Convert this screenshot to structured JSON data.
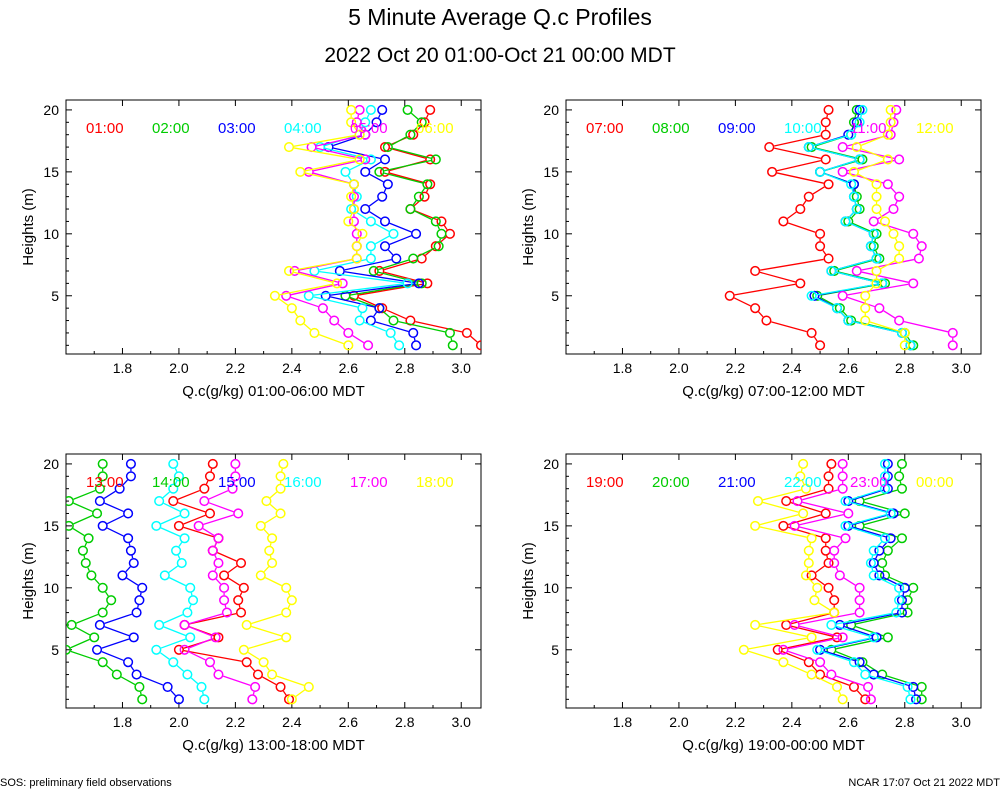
{
  "title": "5 Minute Average Q.c Profiles",
  "subtitle": "2022 Oct 20 01:00-Oct 21 00:00 MDT",
  "footer_left": "SOS: preliminary field observations",
  "footer_right": "NCAR 17:07 Oct 21 2022 MDT",
  "colors": [
    "#ff0000",
    "#00cc00",
    "#0000ff",
    "#00ffff",
    "#ff00ff",
    "#ffff00"
  ],
  "chart_data": [
    {
      "type": "line",
      "xlabel": "Q.c(g/kg) 01:00-06:00 MDT",
      "ylabel": "Heights (m)",
      "xlim": [
        1.6,
        3.07
      ],
      "ylim": [
        0.3,
        20.8
      ],
      "xticks": [
        "1.8",
        "2.0",
        "2.2",
        "2.4",
        "2.6",
        "2.8",
        "3.0"
      ],
      "yticks": [
        "5",
        "10",
        "15",
        "20"
      ],
      "heights": [
        1,
        2,
        3,
        4,
        5,
        6,
        7,
        8,
        9,
        10,
        11,
        12,
        13,
        14,
        15,
        16,
        17,
        18,
        19,
        20
      ],
      "series": [
        {
          "name": "01:00",
          "values": [
            3.07,
            3.02,
            2.82,
            2.72,
            2.62,
            2.88,
            2.71,
            2.86,
            2.91,
            2.96,
            2.93,
            2.82,
            2.87,
            2.89,
            2.73,
            2.89,
            2.73,
            2.83,
            2.87,
            2.89
          ]
        },
        {
          "name": "02:00",
          "values": [
            2.97,
            2.96,
            2.76,
            2.71,
            2.59,
            2.86,
            2.69,
            2.83,
            2.92,
            2.93,
            2.91,
            2.82,
            2.85,
            2.88,
            2.71,
            2.91,
            2.74,
            2.82,
            2.86,
            2.81
          ]
        },
        {
          "name": "03:00",
          "values": [
            2.84,
            2.83,
            2.68,
            2.71,
            2.52,
            2.85,
            2.57,
            2.77,
            2.73,
            2.84,
            2.73,
            2.66,
            2.72,
            2.74,
            2.66,
            2.73,
            2.53,
            2.66,
            2.7,
            2.72
          ]
        },
        {
          "name": "04:00",
          "values": [
            2.78,
            2.75,
            2.64,
            2.65,
            2.46,
            2.81,
            2.48,
            2.68,
            2.68,
            2.76,
            2.68,
            2.61,
            2.63,
            2.62,
            2.59,
            2.68,
            2.5,
            2.64,
            2.66,
            2.68
          ]
        },
        {
          "name": "05:00",
          "values": [
            2.67,
            2.6,
            2.55,
            2.51,
            2.38,
            2.58,
            2.41,
            2.63,
            2.63,
            2.63,
            2.62,
            2.62,
            2.62,
            2.62,
            2.46,
            2.66,
            2.47,
            2.66,
            2.63,
            2.64
          ]
        },
        {
          "name": "06:00",
          "values": [
            2.6,
            2.48,
            2.43,
            2.4,
            2.34,
            2.56,
            2.39,
            2.63,
            2.63,
            2.65,
            2.6,
            2.62,
            2.61,
            2.62,
            2.43,
            2.64,
            2.39,
            2.64,
            2.61,
            2.61
          ]
        }
      ]
    },
    {
      "type": "line",
      "xlabel": "Q.c(g/kg) 07:00-12:00 MDT",
      "ylabel": "Heights (m)",
      "xlim": [
        1.6,
        3.07
      ],
      "ylim": [
        0.3,
        20.8
      ],
      "xticks": [
        "1.8",
        "2.0",
        "2.2",
        "2.4",
        "2.6",
        "2.8",
        "3.0"
      ],
      "yticks": [
        "5",
        "10",
        "15",
        "20"
      ],
      "heights": [
        1,
        2,
        3,
        4,
        5,
        6,
        7,
        8,
        9,
        10,
        11,
        12,
        13,
        14,
        15,
        16,
        17,
        18,
        19,
        20
      ],
      "series": [
        {
          "name": "07:00",
          "values": [
            2.5,
            2.47,
            2.31,
            2.27,
            2.18,
            2.43,
            2.27,
            2.53,
            2.5,
            2.5,
            2.37,
            2.43,
            2.46,
            2.53,
            2.33,
            2.52,
            2.32,
            2.52,
            2.52,
            2.53
          ]
        },
        {
          "name": "08:00",
          "values": [
            2.83,
            2.8,
            2.61,
            2.57,
            2.49,
            2.73,
            2.55,
            2.71,
            2.69,
            2.7,
            2.6,
            2.64,
            2.63,
            2.62,
            2.5,
            2.65,
            2.47,
            2.61,
            2.62,
            2.63
          ]
        },
        {
          "name": "09:00",
          "values": [
            2.82,
            2.79,
            2.6,
            2.56,
            2.48,
            2.72,
            2.54,
            2.7,
            2.68,
            2.69,
            2.59,
            2.63,
            2.62,
            2.62,
            2.5,
            2.64,
            2.46,
            2.6,
            2.63,
            2.64
          ]
        },
        {
          "name": "10:00",
          "values": [
            2.82,
            2.79,
            2.6,
            2.56,
            2.47,
            2.72,
            2.54,
            2.7,
            2.68,
            2.69,
            2.59,
            2.63,
            2.62,
            2.61,
            2.5,
            2.64,
            2.46,
            2.61,
            2.64,
            2.65
          ]
        },
        {
          "name": "11:00",
          "values": [
            2.97,
            2.97,
            2.78,
            2.71,
            2.58,
            2.83,
            2.63,
            2.85,
            2.86,
            2.83,
            2.69,
            2.76,
            2.78,
            2.74,
            2.58,
            2.78,
            2.58,
            2.75,
            2.76,
            2.77
          ]
        },
        {
          "name": "12:00",
          "values": [
            2.8,
            2.8,
            2.66,
            2.66,
            2.66,
            2.7,
            2.7,
            2.78,
            2.78,
            2.76,
            2.73,
            2.7,
            2.7,
            2.7,
            2.62,
            2.74,
            2.63,
            2.74,
            2.75,
            2.75
          ]
        }
      ]
    },
    {
      "type": "line",
      "xlabel": "Q.c(g/kg) 13:00-18:00 MDT",
      "ylabel": "Heights (m)",
      "xlim": [
        1.6,
        3.07
      ],
      "ylim": [
        0.3,
        20.8
      ],
      "xticks": [
        "1.8",
        "2.0",
        "2.2",
        "2.4",
        "2.6",
        "2.8",
        "3.0"
      ],
      "yticks": [
        "5",
        "10",
        "15",
        "20"
      ],
      "heights": [
        1,
        2,
        3,
        4,
        5,
        6,
        7,
        8,
        9,
        10,
        11,
        12,
        13,
        14,
        15,
        16,
        17,
        18,
        19,
        20
      ],
      "series": [
        {
          "name": "13:00",
          "values": [
            2.39,
            2.36,
            2.28,
            2.24,
            2.0,
            2.14,
            2.02,
            2.22,
            2.21,
            2.23,
            2.16,
            2.22,
            2.12,
            2.14,
            2.0,
            2.11,
            1.98,
            2.09,
            2.11,
            2.12
          ]
        },
        {
          "name": "14:00",
          "values": [
            1.87,
            1.86,
            1.78,
            1.73,
            1.6,
            1.7,
            1.62,
            1.73,
            1.76,
            1.73,
            1.69,
            1.67,
            1.66,
            1.68,
            1.61,
            1.71,
            1.61,
            1.72,
            1.73,
            1.73
          ]
        },
        {
          "name": "15:00",
          "values": [
            2.0,
            1.96,
            1.85,
            1.82,
            1.71,
            1.84,
            1.72,
            1.85,
            1.86,
            1.87,
            1.8,
            1.84,
            1.83,
            1.82,
            1.73,
            1.82,
            1.72,
            1.79,
            1.83,
            1.83
          ]
        },
        {
          "name": "16:00",
          "values": [
            2.09,
            2.08,
            2.03,
            1.98,
            1.92,
            2.04,
            1.93,
            2.03,
            2.05,
            2.04,
            1.95,
            2.01,
            1.99,
            2.02,
            1.92,
            2.02,
            1.93,
            1.98,
            2.0,
            1.98
          ]
        },
        {
          "name": "17:00",
          "values": [
            2.26,
            2.27,
            2.14,
            2.11,
            2.02,
            2.13,
            2.02,
            2.17,
            2.16,
            2.16,
            2.12,
            2.14,
            2.12,
            2.14,
            2.07,
            2.21,
            2.09,
            2.19,
            2.2,
            2.2
          ]
        },
        {
          "name": "18:00",
          "values": [
            2.4,
            2.46,
            2.33,
            2.3,
            2.23,
            2.38,
            2.24,
            2.38,
            2.4,
            2.38,
            2.29,
            2.33,
            2.32,
            2.33,
            2.29,
            2.36,
            2.31,
            2.36,
            2.36,
            2.37
          ]
        }
      ]
    },
    {
      "type": "line",
      "xlabel": "Q.c(g/kg) 19:00-00:00 MDT",
      "ylabel": "Heights (m)",
      "xlim": [
        1.6,
        3.07
      ],
      "ylim": [
        0.3,
        20.8
      ],
      "xticks": [
        "1.8",
        "2.0",
        "2.2",
        "2.4",
        "2.6",
        "2.8",
        "3.0"
      ],
      "yticks": [
        "5",
        "10",
        "15",
        "20"
      ],
      "heights": [
        1,
        2,
        3,
        4,
        5,
        6,
        7,
        8,
        9,
        10,
        11,
        12,
        13,
        14,
        15,
        16,
        17,
        18,
        19,
        20
      ],
      "series": [
        {
          "name": "19:00",
          "values": [
            2.66,
            2.62,
            2.5,
            2.46,
            2.35,
            2.56,
            2.38,
            2.55,
            2.55,
            2.53,
            2.47,
            2.53,
            2.52,
            2.52,
            2.37,
            2.52,
            2.38,
            2.53,
            2.53,
            2.54
          ]
        },
        {
          "name": "20:00",
          "values": [
            2.86,
            2.86,
            2.72,
            2.65,
            2.54,
            2.74,
            2.61,
            2.81,
            2.81,
            2.83,
            2.73,
            2.72,
            2.74,
            2.79,
            2.64,
            2.8,
            2.64,
            2.79,
            2.78,
            2.79
          ]
        },
        {
          "name": "21:00",
          "values": [
            2.84,
            2.83,
            2.69,
            2.64,
            2.5,
            2.7,
            2.57,
            2.79,
            2.79,
            2.8,
            2.71,
            2.69,
            2.71,
            2.75,
            2.6,
            2.76,
            2.6,
            2.74,
            2.74,
            2.74
          ]
        },
        {
          "name": "22:00",
          "values": [
            2.82,
            2.81,
            2.66,
            2.62,
            2.49,
            2.69,
            2.54,
            2.77,
            2.78,
            2.78,
            2.69,
            2.68,
            2.69,
            2.73,
            2.59,
            2.75,
            2.59,
            2.73,
            2.73,
            2.73
          ]
        },
        {
          "name": "23:00",
          "values": [
            2.68,
            2.67,
            2.54,
            2.5,
            2.37,
            2.58,
            2.41,
            2.64,
            2.64,
            2.64,
            2.57,
            2.55,
            2.55,
            2.59,
            2.41,
            2.6,
            2.42,
            2.58,
            2.58,
            2.58
          ]
        },
        {
          "name": "00:00",
          "values": [
            2.58,
            2.56,
            2.47,
            2.37,
            2.23,
            2.47,
            2.27,
            2.55,
            2.48,
            2.49,
            2.45,
            2.46,
            2.46,
            2.47,
            2.27,
            2.44,
            2.28,
            2.45,
            2.43,
            2.44
          ]
        }
      ]
    }
  ]
}
